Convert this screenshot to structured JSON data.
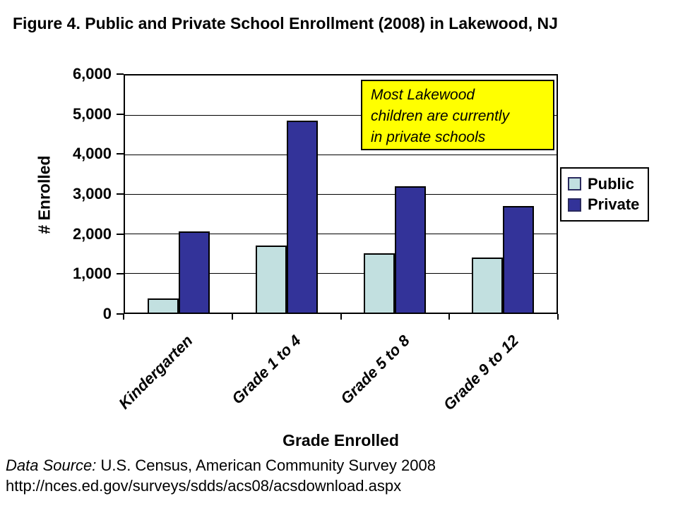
{
  "annotation": {
    "lines": [
      "Most Lakewood",
      "children are currently",
      "in private schools"
    ],
    "bg_color": "#FFFF00"
  },
  "footer": {
    "source_label": "Data Source:",
    "source_text": " U.S. Census, American Community Survey 2008",
    "url": "http://nces.ed.gov/surveys/sdds/acs08/acsdownload.aspx"
  },
  "chart_data": {
    "type": "bar",
    "title": "Figure 4. Public and Private School Enrollment (2008) in Lakewood, NJ",
    "categories": [
      "Kindergarten",
      "Grade 1 to 4",
      "Grade 5 to 8",
      "Grade 9 to 12"
    ],
    "series": [
      {
        "name": "Public",
        "color": "#C2E0E0",
        "values": [
          350,
          1700,
          1500,
          1400
        ]
      },
      {
        "name": "Private",
        "color": "#333399",
        "values": [
          2050,
          4850,
          3200,
          2700
        ]
      }
    ],
    "xlabel": "Grade Enrolled",
    "ylabel": "# Enrolled",
    "ylim": [
      0,
      6000
    ],
    "ytick_step": 1000,
    "ytick_labels": [
      "0",
      "1,000",
      "2,000",
      "3,000",
      "4,000",
      "5,000",
      "6,000"
    ],
    "grid": "horizontal",
    "legend_position": "right"
  }
}
